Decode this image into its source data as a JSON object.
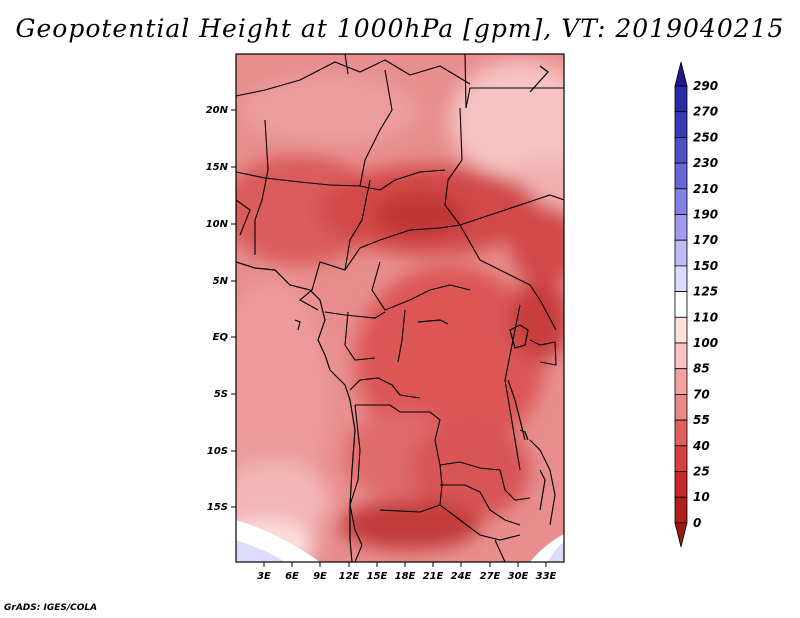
{
  "title": "Geopotential Height at 1000hPa [gpm], VT: 2019040215",
  "credit": "GrADS: IGES/COLA",
  "map": {
    "region": "Central Africa",
    "lat_ticks": [
      "20N",
      "15N",
      "10N",
      "5N",
      "EQ",
      "5S",
      "10S",
      "15S"
    ],
    "lon_ticks": [
      "3E",
      "6E",
      "9E",
      "12E",
      "15E",
      "18E",
      "21E",
      "24E",
      "27E",
      "30E",
      "33E"
    ]
  },
  "colorbar": {
    "labels": [
      "290",
      "270",
      "250",
      "230",
      "210",
      "190",
      "170",
      "150",
      "125",
      "110",
      "100",
      "85",
      "70",
      "55",
      "40",
      "25",
      "10",
      "0"
    ],
    "colors": [
      "#1c1a8c",
      "#2a2aa8",
      "#3a3ab8",
      "#4f4fc8",
      "#6a66d8",
      "#8580e6",
      "#a29cf0",
      "#c0bcf6",
      "#dcdcfc",
      "#ffffff",
      "#fde0e0",
      "#f8c4c4",
      "#f1a3a3",
      "#e98888",
      "#e06060",
      "#d84040",
      "#c82a2a",
      "#b01e1e",
      "#9a1818"
    ]
  }
}
